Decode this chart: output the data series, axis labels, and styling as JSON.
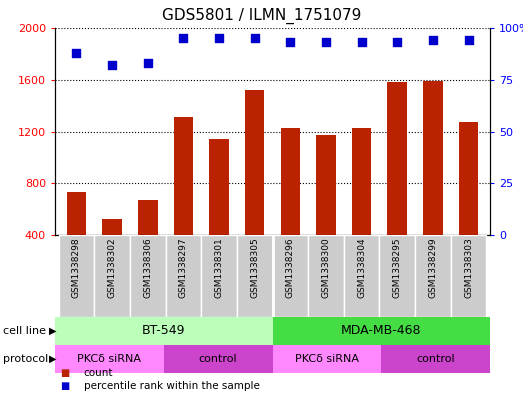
{
  "title": "GDS5801 / ILMN_1751079",
  "samples": [
    "GSM1338298",
    "GSM1338302",
    "GSM1338306",
    "GSM1338297",
    "GSM1338301",
    "GSM1338305",
    "GSM1338296",
    "GSM1338300",
    "GSM1338304",
    "GSM1338295",
    "GSM1338299",
    "GSM1338303"
  ],
  "counts": [
    730,
    520,
    670,
    1310,
    1140,
    1520,
    1230,
    1170,
    1230,
    1580,
    1590,
    1270
  ],
  "percentiles": [
    88,
    82,
    83,
    95,
    95,
    95,
    93,
    93,
    93,
    93,
    94,
    94
  ],
  "bar_color": "#bb2200",
  "dot_color": "#0000cc",
  "ylim_left": [
    400,
    2000
  ],
  "ylim_right": [
    0,
    100
  ],
  "yticks_left": [
    400,
    800,
    1200,
    1600,
    2000
  ],
  "yticks_right": [
    0,
    25,
    50,
    75,
    100
  ],
  "ytick_labels_right": [
    "0",
    "25",
    "50",
    "75",
    "100%"
  ],
  "cell_lines": [
    {
      "label": "BT-549",
      "start": 0,
      "end": 6,
      "color": "#bbffbb"
    },
    {
      "label": "MDA-MB-468",
      "start": 6,
      "end": 12,
      "color": "#44dd44"
    }
  ],
  "protocols": [
    {
      "label": "PKCδ siRNA",
      "start": 0,
      "end": 3,
      "color": "#ff88ff"
    },
    {
      "label": "control",
      "start": 3,
      "end": 6,
      "color": "#cc44cc"
    },
    {
      "label": "PKCδ siRNA",
      "start": 6,
      "end": 9,
      "color": "#ff88ff"
    },
    {
      "label": "control",
      "start": 9,
      "end": 12,
      "color": "#cc44cc"
    }
  ],
  "legend_count_label": "count",
  "legend_pct_label": "percentile rank within the sample",
  "cell_line_label": "cell line",
  "protocol_label": "protocol",
  "bar_width": 0.55,
  "dot_size": 35,
  "sample_bg_color": "#cccccc",
  "sample_sep_color": "#ffffff"
}
